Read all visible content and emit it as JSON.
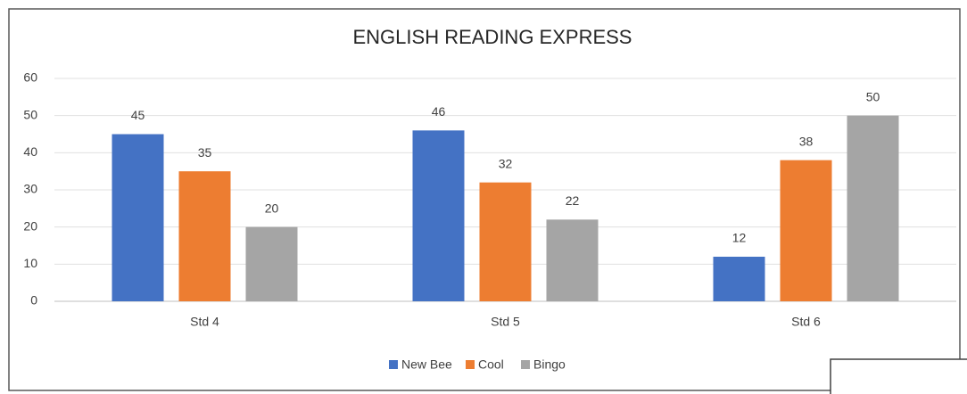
{
  "chart_data": {
    "type": "bar",
    "title": "ENGLISH READING EXPRESS",
    "categories": [
      "Std 4",
      "Std 5",
      "Std 6"
    ],
    "series": [
      {
        "name": "New Bee",
        "color": "#4472c4",
        "values": [
          45,
          46,
          12
        ]
      },
      {
        "name": "Cool",
        "color": "#ed7d31",
        "values": [
          35,
          32,
          38
        ]
      },
      {
        "name": "Bingo",
        "color": "#a5a5a5",
        "values": [
          20,
          22,
          50
        ]
      }
    ],
    "ylim": [
      0,
      60
    ],
    "yticks": [
      0,
      10,
      20,
      30,
      40,
      50,
      60
    ],
    "grid": true,
    "legend": "bottom"
  }
}
